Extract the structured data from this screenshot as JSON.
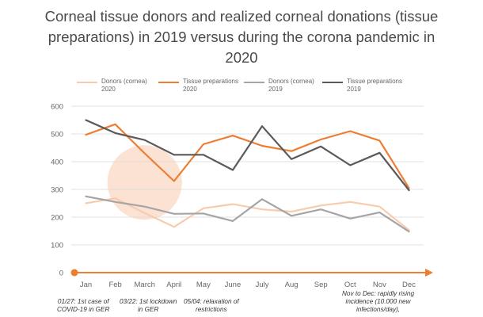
{
  "chart_data": {
    "type": "line",
    "title": "Corneal tissue donors and realized corneal donations (tissue preparations) in 2019 versus during the corona pandemic in 2020",
    "categories": [
      "Jan",
      "Feb",
      "March",
      "April",
      "May",
      "June",
      "July",
      "Aug",
      "Sep",
      "Oct",
      "Nov",
      "Dec"
    ],
    "ylim": [
      0,
      600
    ],
    "yticks": [
      0,
      100,
      200,
      300,
      400,
      500,
      600
    ],
    "grid": "horizontal",
    "legend_position": "top",
    "series": [
      {
        "name": "Donors (cornea) 2020",
        "name_line1": "Donors (cornea)",
        "name_line2": "2020",
        "color": "#f8cbad",
        "values": [
          250,
          268,
          215,
          165,
          232,
          247,
          228,
          220,
          242,
          255,
          238,
          153
        ]
      },
      {
        "name": "Tissue preparations 2020",
        "name_line1": "Tissue preparations",
        "name_line2": "2020",
        "color": "#ed7d31",
        "values": [
          497,
          535,
          430,
          330,
          463,
          494,
          457,
          438,
          480,
          510,
          476,
          305
        ]
      },
      {
        "name": "Donors (cornea) 2019",
        "name_line1": "Donors (cornea)",
        "name_line2": "2019",
        "color": "#a5a5a5",
        "values": [
          275,
          255,
          238,
          212,
          213,
          186,
          265,
          205,
          228,
          195,
          217,
          148
        ]
      },
      {
        "name": "Tissue preparations 2019",
        "name_line1": "Tissue preparations",
        "name_line2": "2019",
        "color": "#595959",
        "values": [
          550,
          503,
          478,
          425,
          425,
          370,
          528,
          409,
          455,
          387,
          432,
          297
        ]
      }
    ],
    "annotations": [
      {
        "text_lines": [
          "01/27: 1st case of",
          "COVID-19 in GER"
        ]
      },
      {
        "text_lines": [
          "03/22: 1st lockdown",
          "in GER"
        ]
      },
      {
        "text_lines": [
          "05/04: relaxation of",
          "restrictions"
        ]
      },
      {
        "text_lines": [
          "Nov to Dec: rapidly rising",
          "incidence (10.000 new",
          "infections/day),"
        ]
      }
    ],
    "timeline_color": "#ed7d31",
    "highlight_color": "#f8cbad"
  }
}
